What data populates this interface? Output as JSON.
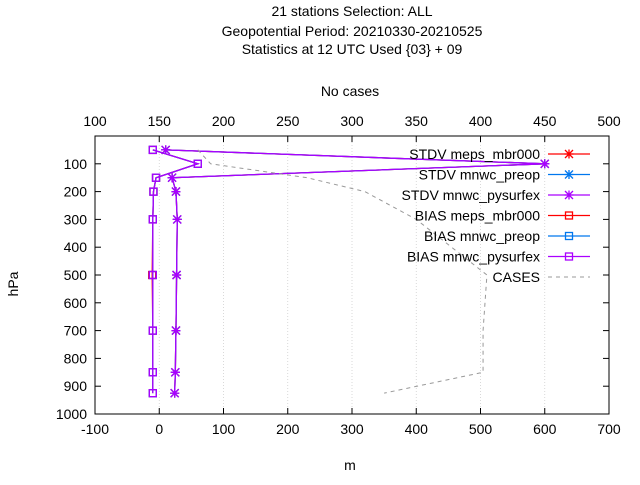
{
  "chart_data": {
    "type": "line",
    "title_lines": [
      "21 stations Selection: ALL",
      "Geopotential  Period: 20210330-20210525",
      "Statistics at 12 UTC  Used {03} + 09"
    ],
    "xlabel": "m",
    "ylabel": "hPa",
    "x2label": "No cases",
    "xlim": [
      -100,
      700
    ],
    "ylim": [
      1000,
      0
    ],
    "x2lim": [
      100,
      500
    ],
    "xticks": [
      -100,
      0,
      100,
      200,
      300,
      400,
      500,
      600,
      700
    ],
    "yticks": [
      100,
      200,
      300,
      400,
      500,
      600,
      700,
      800,
      900,
      1000
    ],
    "x2ticks": [
      100,
      150,
      200,
      250,
      300,
      350,
      400,
      450,
      500
    ],
    "legend_position": "top-right",
    "levels": [
      50,
      100,
      150,
      200,
      300,
      500,
      700,
      850,
      925
    ],
    "series": [
      {
        "name": "STDV meps_mbr000",
        "color": "#ff0000",
        "marker": "x",
        "axis": "x",
        "values": [
          10,
          600,
          20,
          26,
          28,
          27,
          26,
          25,
          24
        ]
      },
      {
        "name": "STDV mnwc_preop",
        "color": "#0077ee",
        "marker": "x",
        "axis": "x",
        "values": [
          10,
          600,
          20,
          26,
          28,
          27,
          26,
          25,
          24
        ]
      },
      {
        "name": "STDV mnwc_pysurfex",
        "color": "#aa00ff",
        "marker": "x",
        "axis": "x",
        "values": [
          10,
          600,
          20,
          26,
          28,
          27,
          26,
          25,
          24
        ]
      },
      {
        "name": "BIAS meps_mbr000",
        "color": "#ff0000",
        "marker": "square",
        "axis": "x",
        "values": [
          -10,
          60,
          -5,
          -9,
          -10,
          -11,
          -10,
          -10,
          -10
        ]
      },
      {
        "name": "BIAS mnwc_preop",
        "color": "#0077ee",
        "marker": "square",
        "axis": "x",
        "values": [
          -10,
          60,
          -5,
          -9,
          -10,
          -10,
          -10,
          -10,
          -10
        ]
      },
      {
        "name": "BIAS mnwc_pysurfex",
        "color": "#aa00ff",
        "marker": "square",
        "axis": "x",
        "values": [
          -10,
          60,
          -5,
          -9,
          -10,
          -10,
          -10,
          -10,
          -10
        ]
      },
      {
        "name": "CASES",
        "color": "#999999",
        "marker": "none",
        "axis": "x2",
        "dashed": true,
        "values": [
          180,
          190,
          265,
          310,
          350,
          405,
          402,
          402,
          325
        ]
      }
    ]
  }
}
